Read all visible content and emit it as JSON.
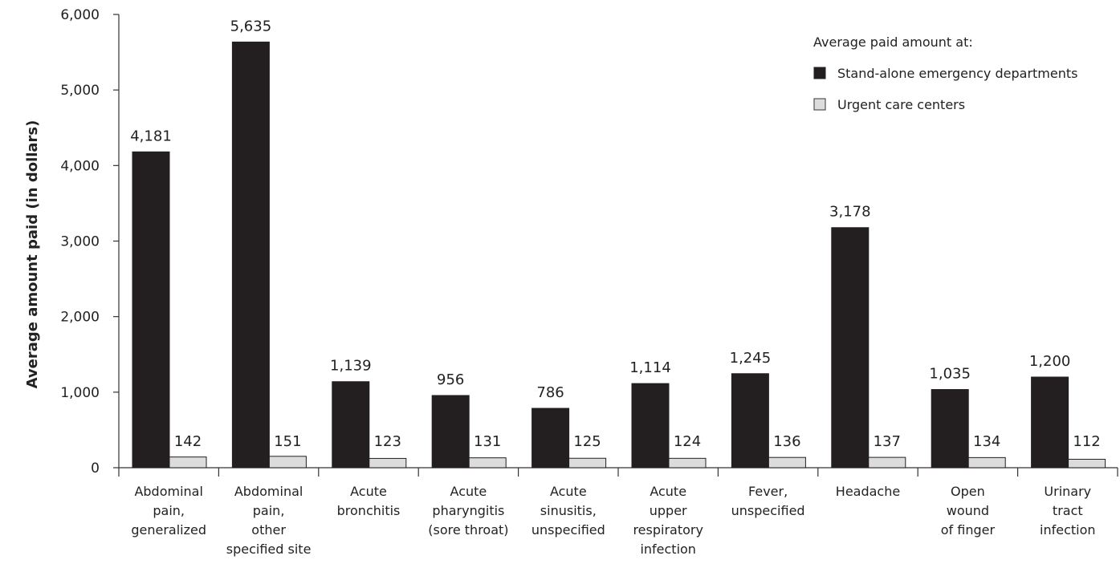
{
  "chart_data": {
    "type": "bar",
    "title": "",
    "xlabel": "",
    "ylabel": "Average amount paid (in dollars)",
    "ylim": [
      0,
      6000
    ],
    "yticks": [
      0,
      1000,
      2000,
      3000,
      4000,
      5000,
      6000
    ],
    "ytick_labels": [
      "0",
      "1,000",
      "2,000",
      "3,000",
      "4,000",
      "5,000",
      "6,000"
    ],
    "grid": false,
    "legend": {
      "title": "Average paid amount at:",
      "placement": "top-right"
    },
    "categories": [
      [
        "Abdominal",
        "pain,",
        "generalized"
      ],
      [
        "Abdominal",
        "pain,",
        "other",
        "specified site"
      ],
      [
        "Acute",
        "bronchitis"
      ],
      [
        "Acute",
        "pharyngitis",
        "(sore throat)"
      ],
      [
        "Acute",
        "sinusitis,",
        "unspecified"
      ],
      [
        "Acute",
        "upper",
        "respiratory",
        "infection"
      ],
      [
        "Fever,",
        "unspecified"
      ],
      [
        "Headache"
      ],
      [
        "Open",
        "wound",
        "of finger"
      ],
      [
        "Urinary",
        "tract",
        "infection"
      ]
    ],
    "series": [
      {
        "name": "Stand-alone emergency departments",
        "color": "#231f20",
        "values": [
          4181,
          5635,
          1139,
          956,
          786,
          1114,
          1245,
          3178,
          1035,
          1200
        ],
        "labels": [
          "4,181",
          "5,635",
          "1,139",
          "956",
          "786",
          "1,114",
          "1,245",
          "3,178",
          "1,035",
          "1,200"
        ]
      },
      {
        "name": "Urgent care centers",
        "color": "#dcdcdc",
        "values": [
          142,
          151,
          123,
          131,
          125,
          124,
          136,
          137,
          134,
          112
        ],
        "labels": [
          "142",
          "151",
          "123",
          "131",
          "125",
          "124",
          "136",
          "137",
          "134",
          "112"
        ]
      }
    ]
  }
}
